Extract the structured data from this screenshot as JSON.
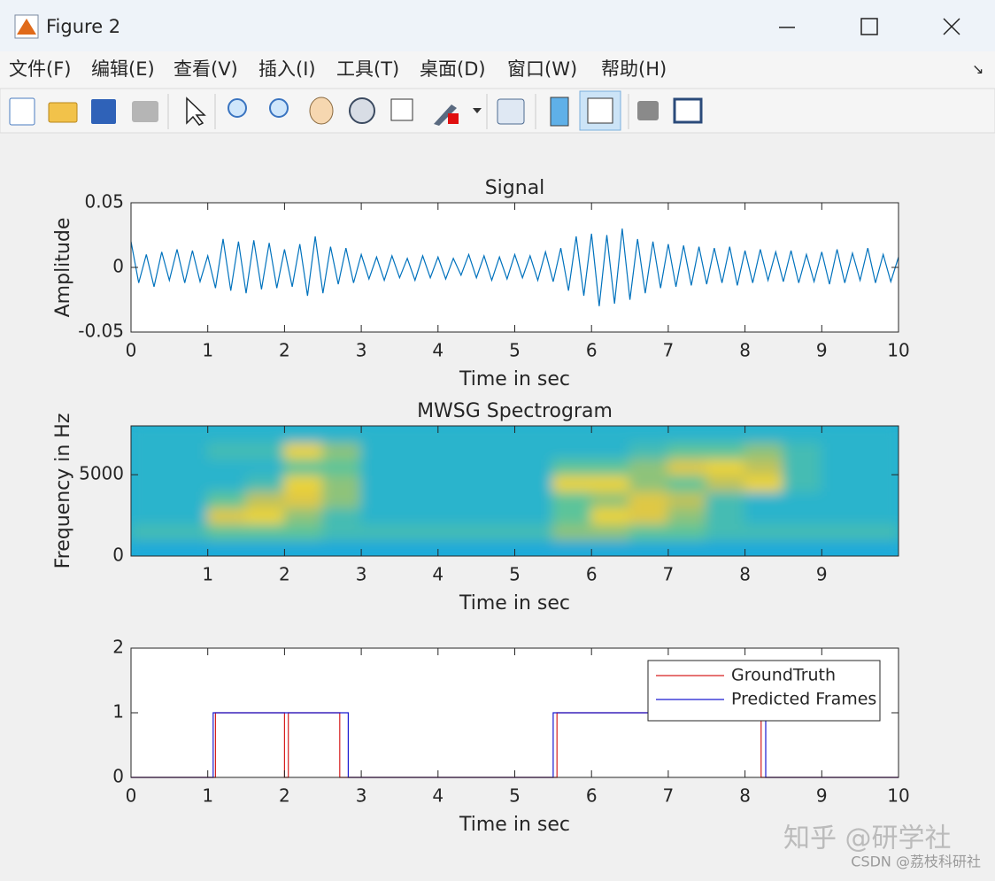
{
  "window": {
    "title": "Figure 2",
    "menu": [
      "文件(F)",
      "编辑(E)",
      "查看(V)",
      "插入(I)",
      "工具(T)",
      "桌面(D)",
      "窗口(W)",
      "帮助(H)"
    ]
  },
  "watermark": [
    "知乎 @研学社",
    "CSDN @荔枝科研社"
  ],
  "chart_data": [
    {
      "type": "line",
      "title": "Signal",
      "xlabel": "Time in sec",
      "ylabel": "Amplitude",
      "color": "#0072bd",
      "xlim": [
        0,
        10
      ],
      "xticks": [
        0,
        1,
        2,
        3,
        4,
        5,
        6,
        7,
        8,
        9,
        10
      ],
      "ylim": [
        -0.05,
        0.05
      ],
      "yticks": [
        -0.05,
        0,
        0.05
      ],
      "x": [
        0,
        0.1,
        0.2,
        0.3,
        0.4,
        0.5,
        0.6,
        0.7,
        0.8,
        0.9,
        1,
        1.1,
        1.2,
        1.3,
        1.4,
        1.5,
        1.6,
        1.7,
        1.8,
        1.9,
        2,
        2.1,
        2.2,
        2.3,
        2.4,
        2.5,
        2.6,
        2.7,
        2.8,
        2.9,
        3,
        3.1,
        3.2,
        3.3,
        3.4,
        3.5,
        3.6,
        3.7,
        3.8,
        3.9,
        4,
        4.1,
        4.2,
        4.3,
        4.4,
        4.5,
        4.6,
        4.7,
        4.8,
        4.9,
        5,
        5.1,
        5.2,
        5.3,
        5.4,
        5.5,
        5.6,
        5.7,
        5.8,
        5.9,
        6,
        6.1,
        6.2,
        6.3,
        6.4,
        6.5,
        6.6,
        6.7,
        6.8,
        6.9,
        7,
        7.1,
        7.2,
        7.3,
        7.4,
        7.5,
        7.6,
        7.7,
        7.8,
        7.9,
        8,
        8.1,
        8.2,
        8.3,
        8.4,
        8.5,
        8.6,
        8.7,
        8.8,
        8.9,
        9,
        9.1,
        9.2,
        9.3,
        9.4,
        9.5,
        9.6,
        9.7,
        9.8,
        9.9,
        10
      ],
      "values": [
        0.02,
        -0.012,
        0.01,
        -0.015,
        0.012,
        -0.01,
        0.014,
        -0.012,
        0.013,
        -0.011,
        0.009,
        -0.016,
        0.022,
        -0.018,
        0.02,
        -0.02,
        0.021,
        -0.017,
        0.019,
        -0.016,
        0.014,
        -0.015,
        0.018,
        -0.022,
        0.024,
        -0.02,
        0.016,
        -0.013,
        0.015,
        -0.012,
        0.01,
        -0.009,
        0.008,
        -0.01,
        0.009,
        -0.008,
        0.007,
        -0.01,
        0.009,
        -0.008,
        0.008,
        -0.009,
        0.007,
        -0.006,
        0.01,
        -0.008,
        0.009,
        -0.01,
        0.008,
        -0.009,
        0.01,
        -0.008,
        0.009,
        -0.01,
        0.012,
        -0.011,
        0.015,
        -0.018,
        0.024,
        -0.022,
        0.026,
        -0.03,
        0.025,
        -0.028,
        0.03,
        -0.025,
        0.022,
        -0.02,
        0.02,
        -0.016,
        0.018,
        -0.015,
        0.017,
        -0.014,
        0.016,
        -0.013,
        0.015,
        -0.012,
        0.016,
        -0.014,
        0.013,
        -0.012,
        0.014,
        -0.01,
        0.012,
        -0.011,
        0.013,
        -0.012,
        0.01,
        -0.011,
        0.012,
        -0.013,
        0.014,
        -0.012,
        0.011,
        -0.01,
        0.015,
        -0.012,
        0.01,
        -0.011,
        0.008
      ]
    },
    {
      "type": "heatmap",
      "title": "MWSG Spectrogram",
      "xlabel": "Time in sec",
      "ylabel": "Frequency in Hz",
      "xlim": [
        0,
        10
      ],
      "xticks": [
        1,
        2,
        3,
        4,
        5,
        6,
        7,
        8,
        9
      ],
      "ylim": [
        0,
        8000
      ],
      "yticks": [
        0,
        5000
      ],
      "clim": [
        0,
        10
      ],
      "colormap": [
        "#1f8fe0",
        "#1fb0d8",
        "#5cc49a",
        "#d9c24a",
        "#f7de2c"
      ],
      "z": [
        [
          2,
          2,
          2,
          2,
          2,
          2,
          2,
          2,
          2,
          2,
          2,
          2,
          2,
          2,
          2,
          2,
          2,
          2,
          2,
          2
        ],
        [
          4,
          4,
          5,
          5,
          5,
          4,
          4,
          4,
          4,
          4,
          4,
          6,
          6,
          5,
          5,
          4,
          4,
          4,
          4,
          4
        ],
        [
          3,
          3,
          8,
          9,
          6,
          4,
          3,
          3,
          3,
          3,
          3,
          5,
          9,
          8,
          6,
          4,
          3,
          3,
          3,
          3
        ],
        [
          3,
          3,
          5,
          7,
          8,
          6,
          3,
          3,
          3,
          3,
          3,
          5,
          6,
          8,
          7,
          4,
          3,
          3,
          3,
          3
        ],
        [
          3,
          3,
          3,
          4,
          9,
          6,
          3,
          3,
          3,
          3,
          3,
          9,
          9,
          6,
          5,
          7,
          9,
          4,
          3,
          3
        ],
        [
          3,
          3,
          3,
          3,
          5,
          5,
          3,
          3,
          3,
          3,
          3,
          5,
          5,
          6,
          8,
          9,
          7,
          4,
          3,
          3
        ],
        [
          3,
          3,
          4,
          4,
          9,
          6,
          3,
          3,
          3,
          3,
          3,
          3,
          3,
          4,
          5,
          5,
          6,
          4,
          3,
          3
        ],
        [
          3,
          3,
          3,
          3,
          3,
          3,
          3,
          3,
          3,
          3,
          3,
          3,
          3,
          3,
          3,
          3,
          3,
          3,
          3,
          3
        ]
      ]
    },
    {
      "type": "line",
      "xlabel": "Time in sec",
      "legend": "northeast",
      "xlim": [
        0,
        10
      ],
      "xticks": [
        0,
        1,
        2,
        3,
        4,
        5,
        6,
        7,
        8,
        9,
        10
      ],
      "ylim": [
        0,
        2
      ],
      "yticks": [
        0,
        1,
        2
      ],
      "series": [
        {
          "name": "GroundTruth",
          "color": "#d62020",
          "x": [
            0,
            1.1,
            1.1,
            2.0,
            2.0,
            2.05,
            2.05,
            2.72,
            2.72,
            5.55,
            5.55,
            8.21,
            8.21,
            10
          ],
          "values": [
            0,
            0,
            1,
            1,
            0,
            0,
            1,
            1,
            0,
            0,
            1,
            1,
            0,
            0
          ]
        },
        {
          "name": "Predicted Frames",
          "color": "#1a1ad0",
          "x": [
            0,
            1.07,
            1.07,
            2.83,
            2.83,
            5.5,
            5.5,
            8.27,
            8.27,
            10
          ],
          "values": [
            0,
            0,
            1,
            1,
            0,
            0,
            1,
            1,
            0,
            0
          ]
        }
      ]
    }
  ]
}
